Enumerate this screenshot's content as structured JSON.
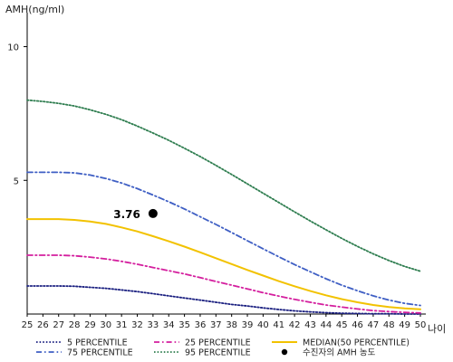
{
  "chart_data": {
    "type": "line",
    "ylabel": "AMH(ng/ml)",
    "xlabel": "나이",
    "xlim": [
      25,
      50
    ],
    "ylim": [
      0,
      11
    ],
    "yticks": [
      5,
      10
    ],
    "x": [
      25,
      26,
      27,
      28,
      29,
      30,
      31,
      32,
      33,
      34,
      35,
      36,
      37,
      38,
      39,
      40,
      41,
      42,
      43,
      44,
      45,
      46,
      47,
      48,
      49,
      50
    ],
    "grid": false,
    "legend_position": "bottom",
    "series": [
      {
        "name": "5 PERCENTILE",
        "color": "#1a1f80",
        "style": "dotted",
        "values": [
          1.05,
          1.05,
          1.05,
          1.04,
          1.0,
          0.96,
          0.9,
          0.84,
          0.76,
          0.68,
          0.6,
          0.52,
          0.44,
          0.36,
          0.3,
          0.23,
          0.17,
          0.12,
          0.08,
          0.05,
          0.03,
          0.02,
          0.01,
          0.01,
          0.0,
          0.0
        ]
      },
      {
        "name": "25 PERCENTILE",
        "color": "#d41f9e",
        "style": "dashdot",
        "values": [
          2.2,
          2.2,
          2.2,
          2.18,
          2.13,
          2.06,
          1.97,
          1.86,
          1.74,
          1.62,
          1.5,
          1.36,
          1.22,
          1.08,
          0.94,
          0.8,
          0.67,
          0.55,
          0.44,
          0.34,
          0.26,
          0.19,
          0.13,
          0.09,
          0.06,
          0.04
        ]
      },
      {
        "name": "MEDIAN(50 PERCENTILE)",
        "color": "#f2c200",
        "style": "solid",
        "values": [
          3.55,
          3.55,
          3.55,
          3.52,
          3.46,
          3.37,
          3.24,
          3.09,
          2.91,
          2.72,
          2.52,
          2.31,
          2.09,
          1.87,
          1.65,
          1.44,
          1.23,
          1.04,
          0.86,
          0.7,
          0.56,
          0.44,
          0.34,
          0.26,
          0.21,
          0.18
        ]
      },
      {
        "name": "75 PERCENTILE",
        "color": "#3f5fc4",
        "style": "dashdot",
        "values": [
          5.3,
          5.3,
          5.3,
          5.28,
          5.2,
          5.07,
          4.9,
          4.69,
          4.45,
          4.2,
          3.93,
          3.64,
          3.35,
          3.05,
          2.74,
          2.44,
          2.14,
          1.85,
          1.58,
          1.32,
          1.08,
          0.87,
          0.68,
          0.52,
          0.4,
          0.32
        ]
      },
      {
        "name": "95 PERCENTILE",
        "color": "#2e7d4f",
        "style": "dotted",
        "values": [
          8.0,
          7.95,
          7.88,
          7.78,
          7.64,
          7.47,
          7.27,
          7.03,
          6.77,
          6.5,
          6.2,
          5.89,
          5.56,
          5.22,
          4.87,
          4.52,
          4.17,
          3.82,
          3.48,
          3.15,
          2.83,
          2.53,
          2.25,
          2.0,
          1.78,
          1.6
        ]
      }
    ],
    "annotation": {
      "x": 33,
      "y": 3.76,
      "label": "3.76",
      "marker_color": "#000000"
    },
    "point_legend": "수진자의 AMH 농도"
  }
}
